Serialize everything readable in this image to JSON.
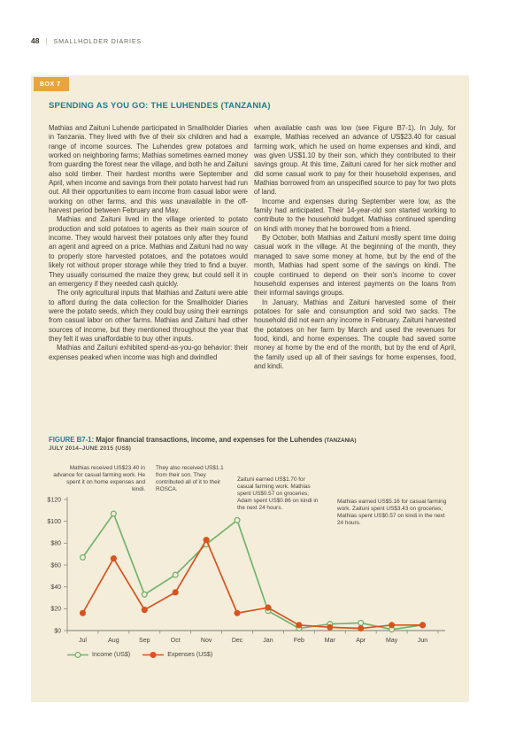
{
  "page": {
    "number": "48",
    "header_title": "SMALLHOLDER DIARIES",
    "separator": "|"
  },
  "box": {
    "tag": "BOX 7",
    "title": "SPENDING AS YOU GO: THE LUHENDES (TANZANIA)",
    "col1": [
      "Mathias and Zaituni Luhende participated in Smallholder Diaries in Tanzania. They lived with five of their six children and had a range of income sources. The Luhendes grew potatoes and worked on neighboring farms; Mathias sometimes earned money from guarding the forest near the village, and both he and Zaituni also sold timber. Their hardest months were September and April, when income and savings from their potato harvest had run out. All their opportunities to earn income from casual labor were working on other farms, and this was unavailable in the off-harvest period between February and May.",
      "Mathias and Zaituni lived in the village oriented to potato production and sold potatoes to agents as their main source of income. They would harvest their potatoes only after they found an agent and agreed on a price. Mathias and Zaituni had no way to properly store harvested potatoes, and the potatoes would likely rot without proper storage while they tried to find a buyer. They usually consumed the maize they grew, but could sell it in an emergency if they needed cash quickly.",
      "The only agricultural inputs that Mathias and Zaituni were able to afford during the data collection for the Smallholder Diaries were the potato seeds, which they could buy using their earnings from casual labor on other farms. Mathias and Zaituni had other sources of income, but they mentioned throughout the year that they felt it was unaffordable to buy other inputs.",
      "Mathias and Zaituni exhibited spend-as-you-go behavior: their expenses peaked when income was high and dwindled"
    ],
    "col2": [
      "when available cash was low (see Figure B7-1). In July, for example, Mathias received an advance of US$23.40 for casual farming work, which he used on home expenses and kindi, and was given US$1.10 by their son, which they contributed to their savings group. At this time, Zaituni cared for her sick mother and did some casual work to pay for their household expenses, and Mathias borrowed from an unspecified source to pay for two plots of land.",
      "Income and expenses during September were low, as the family had anticipated. Their 14-year-old son started working to contribute to the household budget. Mathias continued spending on kindi with money that he borrowed from a friend.",
      "By October, both Mathias and Zaituni mostly spent time doing casual work in the village. At the beginning of the month, they managed to save some money at home, but by the end of the month, Mathias had spent some of the savings on kindi. The couple continued to depend on their son's income to cover household expenses and interest payments on the loans from their informal savings groups.",
      "In January, Mathias and Zaituni harvested some of their potatoes for sale and consumption and sold two sacks. The household did not earn any income in February. Zaituni harvested the potatoes on her farm by March and used the revenues for food, kindi, and home expenses. The couple had saved some money at home by the end of the month, but by the end of April, the family used up all of their savings for home expenses, food, and kindi."
    ]
  },
  "figure": {
    "label": "FIGURE B7-1:",
    "title": "Major financial transactions, income, and expenses for the Luhendes",
    "title_suffix": "(TANZANIA)",
    "subtitle": "JULY 2014–JUNE 2015 (US$)",
    "annotations": [
      "Mathias received US$23.40 in advance for casual farming work. He spent it on home expenses and kindi.",
      "They also received US$1.1 from their son. They contributed all of it to their ROSCA.",
      "Zaituni earned US$1.70 for casual farming work. Mathias spent US$0.57 on groceries; Adam spent US$0.86 on kindi in the next 24 hours.",
      "Mathias earned US$5.16 for casual farming work. Zaituni spent US$3.43 on groceries; Mathias spent US$0.57 on kindi in the next 24 hours."
    ]
  },
  "chart_data": {
    "type": "line",
    "title": "Major financial transactions, income, and expenses for the Luhendes (Tanzania)",
    "subtitle": "July 2014–June 2015 (US$)",
    "categories": [
      "Jul",
      "Aug",
      "Sep",
      "Oct",
      "Nov",
      "Dec",
      "Jan",
      "Feb",
      "Mar",
      "Apr",
      "May",
      "Jun"
    ],
    "series": [
      {
        "name": "Income (US$)",
        "color": "#74b26f",
        "marker": "open",
        "values": [
          67,
          107,
          33,
          51,
          79,
          101,
          18,
          2,
          6,
          7,
          1,
          5
        ]
      },
      {
        "name": "Expenses (US$)",
        "color": "#d8531f",
        "marker": "filled",
        "values": [
          16,
          66,
          19,
          35,
          83,
          16,
          21,
          5,
          3,
          2,
          5,
          5
        ]
      }
    ],
    "ylim": [
      0,
      120
    ],
    "ytick_step": 20,
    "ytick_labels": [
      "$0",
      "$20",
      "$40",
      "$60",
      "$80",
      "$100",
      "$120"
    ],
    "grid": false,
    "legend_position": "bottom-left"
  },
  "colors": {
    "box_bg": "#f4edda",
    "tag_orange": "#e7a440",
    "accent_teal": "#1a7f8e",
    "income_green": "#74b26f",
    "expense_red": "#d8531f",
    "axis_gray": "#8f8b80"
  }
}
